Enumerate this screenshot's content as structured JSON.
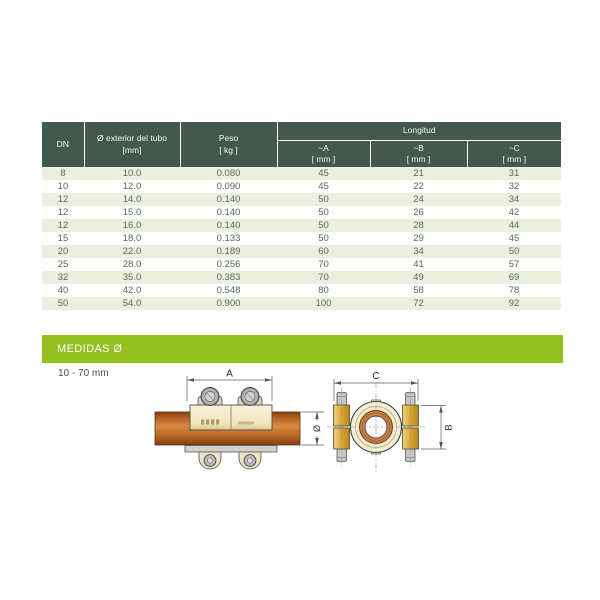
{
  "table": {
    "columns": [
      {
        "label": "DN",
        "unit": ""
      },
      {
        "label": "Ø exterior del tubo",
        "unit": "[mm]"
      },
      {
        "label": "Peso",
        "unit": "[ kg ]"
      }
    ],
    "group_header": "Longitud",
    "sub_columns": [
      {
        "label": "~A",
        "unit": "[ mm ]"
      },
      {
        "label": "~B",
        "unit": "[ mm ]"
      },
      {
        "label": "~C",
        "unit": "[ mm ]"
      }
    ],
    "rows": [
      [
        "8",
        "10.0",
        "0.080",
        "45",
        "21",
        "31"
      ],
      [
        "10",
        "12.0",
        "0.090",
        "45",
        "22",
        "32"
      ],
      [
        "12",
        "14.0",
        "0.140",
        "50",
        "24",
        "34"
      ],
      [
        "12",
        "15.0",
        "0.140",
        "50",
        "26",
        "42"
      ],
      [
        "12",
        "16.0",
        "0.140",
        "50",
        "28",
        "44"
      ],
      [
        "15",
        "18.0",
        "0.133",
        "50",
        "29",
        "45"
      ],
      [
        "20",
        "22.0",
        "0.189",
        "60",
        "34",
        "50"
      ],
      [
        "25",
        "28.0",
        "0.256",
        "70",
        "41",
        "57"
      ],
      [
        "32",
        "35.0",
        "0.383",
        "70",
        "49",
        "69"
      ],
      [
        "40",
        "42.0",
        "0.548",
        "80",
        "58",
        "78"
      ],
      [
        "50",
        "54.0",
        "0.900",
        "100",
        "72",
        "92"
      ]
    ]
  },
  "section": {
    "title": "MEDIDAS Ø",
    "range_label": "10 - 70 mm"
  },
  "drawing": {
    "dim_width_label": "A",
    "dim_diameter_label": "Ø",
    "dim_front_width_label": "C",
    "dim_height_label": "B"
  },
  "colors": {
    "header-green": "#44594e",
    "row-alt-green": "#eaf0dd",
    "banner-green": "#94c11f",
    "table-text": "#5a685f",
    "copper": "#c06a28",
    "brass-cream": "#f3edd2",
    "gold": "#d9a834"
  }
}
